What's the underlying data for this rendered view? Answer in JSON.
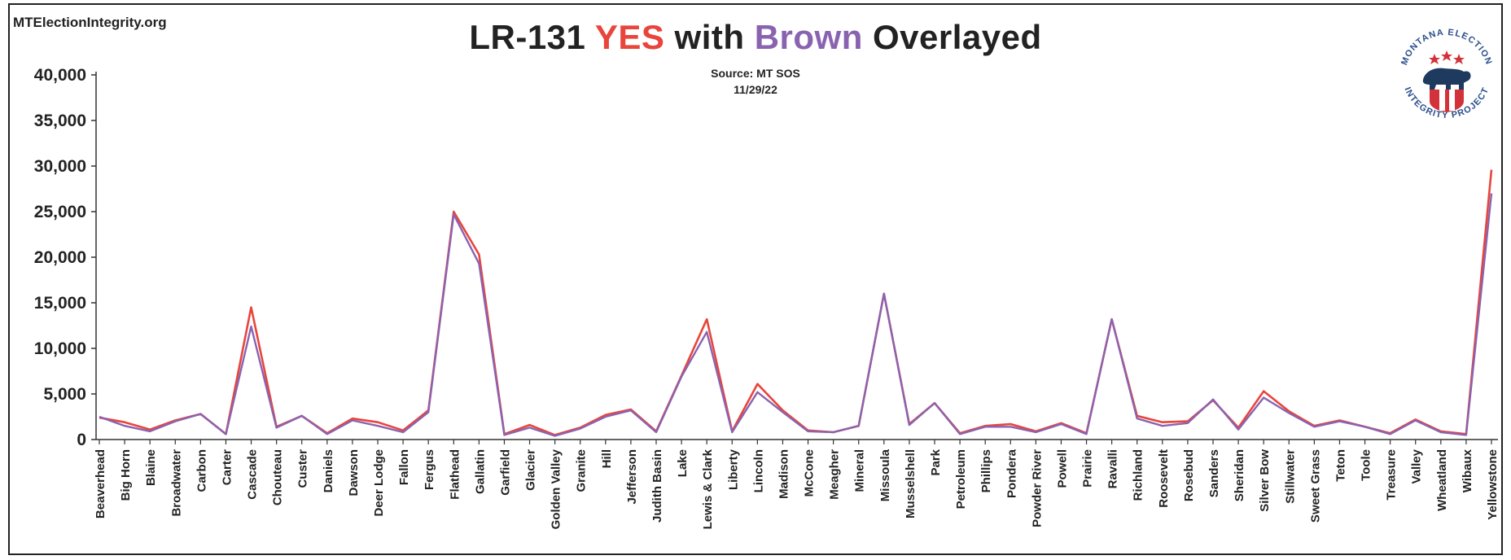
{
  "header": {
    "site": "MTElectionIntegrity.org",
    "title_part1": "LR-131 ",
    "title_yes": "YES",
    "title_part2": " with ",
    "title_brown": "Brown",
    "title_part3": " Overlayed",
    "source": "Source: MT SOS",
    "date": "11/29/22"
  },
  "logo": {
    "text_top": "MONTANA ELECTION",
    "text_bottom": "INTEGRITY PROJECT",
    "icon": "bear-shield-icon"
  },
  "colors": {
    "yes": "#e8453c",
    "brown": "#8a63b0"
  },
  "chart_data": {
    "type": "line",
    "title": "LR-131 YES with Brown Overlayed",
    "ylim": [
      0,
      40000
    ],
    "yticks": [
      0,
      5000,
      10000,
      15000,
      20000,
      25000,
      30000,
      35000,
      40000
    ],
    "ytick_labels": [
      "0",
      "5,000",
      "10,000",
      "15,000",
      "20,000",
      "25,000",
      "30,000",
      "35,000",
      "40,000"
    ],
    "grid": false,
    "categories": [
      "Beaverhead",
      "Big Horn",
      "Blaine",
      "Broadwater",
      "Carbon",
      "Carter",
      "Cascade",
      "Chouteau",
      "Custer",
      "Daniels",
      "Dawson",
      "Deer Lodge",
      "Fallon",
      "Fergus",
      "Flathead",
      "Gallatin",
      "Garfield",
      "Glacier",
      "Golden Valley",
      "Granite",
      "Hill",
      "Jefferson",
      "Judith Basin",
      "Lake",
      "Lewis & Clark",
      "Liberty",
      "Lincoln",
      "Madison",
      "McCone",
      "Meagher",
      "Mineral",
      "Missoula",
      "Musselshell",
      "Park",
      "Petroleum",
      "Phillips",
      "Pondera",
      "Powder River",
      "Powell",
      "Prairie",
      "Ravalli",
      "Richland",
      "Roosevelt",
      "Rosebud",
      "Sanders",
      "Sheridan",
      "Silver Bow",
      "Stillwater",
      "Sweet Grass",
      "Teton",
      "Toole",
      "Treasure",
      "Valley",
      "Wheatland",
      "Wibaux",
      "Yellowstone"
    ],
    "series": [
      {
        "color": "#e8453c",
        "values": [
          2400,
          1900,
          1100,
          2100,
          2800,
          600,
          14500,
          1400,
          2600,
          700,
          2300,
          1900,
          1000,
          3200,
          25000,
          20300,
          600,
          1600,
          500,
          1300,
          2700,
          3300,
          900,
          7000,
          13200,
          900,
          6100,
          3200,
          1000,
          800,
          1500,
          16000,
          1700,
          4000,
          700,
          1500,
          1700,
          900,
          1800,
          700,
          13200,
          2600,
          1900,
          2000,
          4300,
          1300,
          5300,
          3100,
          1500,
          2100,
          1400,
          700,
          2200,
          900,
          600,
          29600
        ]
      },
      {
        "color": "#8a63b0",
        "values": [
          2500,
          1500,
          900,
          2000,
          2800,
          600,
          12400,
          1300,
          2600,
          600,
          2100,
          1500,
          800,
          3000,
          24700,
          19300,
          500,
          1300,
          400,
          1200,
          2500,
          3200,
          800,
          6900,
          11800,
          800,
          5200,
          3000,
          900,
          800,
          1500,
          16000,
          1600,
          4000,
          600,
          1400,
          1400,
          800,
          1700,
          600,
          13200,
          2300,
          1500,
          1800,
          4400,
          1100,
          4600,
          2900,
          1400,
          2000,
          1400,
          600,
          2100,
          800,
          500,
          27000
        ]
      }
    ]
  }
}
